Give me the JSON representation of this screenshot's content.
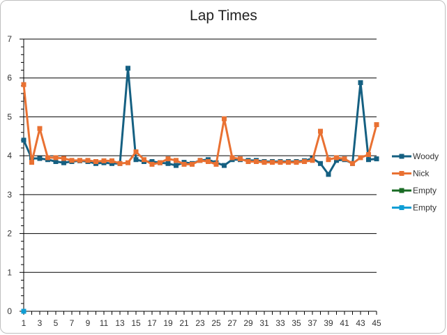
{
  "chart_data": {
    "type": "line",
    "title": "Lap Times",
    "xlabel": "",
    "ylabel": "",
    "ylim": [
      0,
      7
    ],
    "xlim": [
      1,
      45
    ],
    "y_ticks": [
      0,
      1,
      2,
      3,
      4,
      5,
      6,
      7
    ],
    "x_tick_labels": [
      1,
      3,
      5,
      7,
      9,
      11,
      13,
      15,
      17,
      19,
      21,
      23,
      25,
      27,
      29,
      31,
      33,
      35,
      37,
      39,
      41,
      43,
      45
    ],
    "grid": "horizontal major",
    "legend": "right",
    "series": [
      {
        "name": "Woody",
        "color": "#156082",
        "x": [
          1,
          2,
          3,
          4,
          5,
          6,
          7,
          8,
          9,
          10,
          11,
          12,
          13,
          14,
          15,
          16,
          17,
          18,
          19,
          20,
          21,
          22,
          23,
          24,
          25,
          26,
          27,
          28,
          29,
          30,
          31,
          32,
          33,
          34,
          35,
          36,
          37,
          38,
          39,
          40,
          41,
          42,
          43,
          44,
          45
        ],
        "values": [
          4.4,
          3.93,
          3.93,
          3.9,
          3.85,
          3.82,
          3.85,
          3.87,
          3.85,
          3.8,
          3.82,
          3.8,
          3.8,
          6.25,
          3.9,
          3.85,
          3.85,
          3.82,
          3.8,
          3.75,
          3.83,
          3.8,
          3.88,
          3.9,
          3.82,
          3.75,
          3.9,
          3.9,
          3.88,
          3.88,
          3.85,
          3.85,
          3.85,
          3.85,
          3.85,
          3.87,
          3.93,
          3.8,
          3.52,
          3.88,
          3.9,
          3.8,
          5.88,
          3.9,
          3.92
        ]
      },
      {
        "name": "Nick",
        "color": "#E97132",
        "x": [
          1,
          2,
          3,
          4,
          5,
          6,
          7,
          8,
          9,
          10,
          11,
          12,
          13,
          14,
          15,
          16,
          17,
          18,
          19,
          20,
          21,
          22,
          23,
          24,
          25,
          26,
          27,
          28,
          29,
          30,
          31,
          32,
          33,
          34,
          35,
          36,
          37,
          38,
          39,
          40,
          41,
          42,
          43,
          44,
          45
        ],
        "values": [
          5.83,
          3.83,
          4.7,
          3.95,
          3.95,
          3.93,
          3.88,
          3.88,
          3.88,
          3.85,
          3.87,
          3.87,
          3.8,
          3.82,
          4.1,
          3.9,
          3.78,
          3.82,
          3.92,
          3.88,
          3.78,
          3.78,
          3.88,
          3.85,
          3.78,
          4.95,
          3.95,
          3.92,
          3.85,
          3.85,
          3.83,
          3.83,
          3.83,
          3.83,
          3.83,
          3.85,
          3.88,
          4.63,
          3.9,
          3.95,
          3.92,
          3.8,
          3.95,
          4.03,
          4.8
        ]
      },
      {
        "name": "Empty",
        "color": "#196B24",
        "x": [
          1
        ],
        "values": [
          0
        ]
      },
      {
        "name": "Empty",
        "color": "#0F9ED5",
        "x": [
          1
        ],
        "values": [
          0
        ]
      }
    ]
  }
}
